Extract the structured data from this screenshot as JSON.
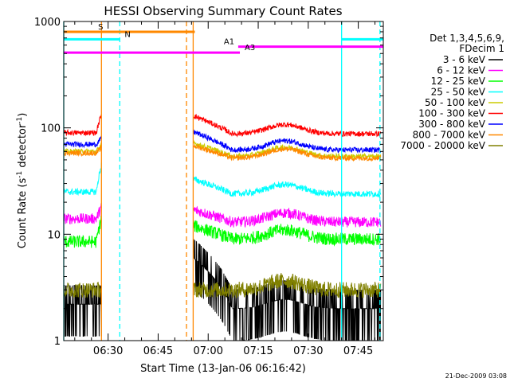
{
  "chart_data": {
    "type": "line",
    "title": "HESSI Observing Summary Count Rates",
    "xlabel": "Start Time (13-Jan-06 06:16:42)",
    "ylabel_main": "Count Rate (s",
    "ylabel_sup1": "-1",
    "ylabel_mid": " detector",
    "ylabel_sup2": "-1",
    "ylabel_end": ")",
    "y_scale": "log",
    "ylim": [
      1,
      1000
    ],
    "xlim": [
      "06:16:42",
      "07:52:30"
    ],
    "x_ticks": [
      "06:30",
      "06:45",
      "07:00",
      "07:15",
      "07:30",
      "07:45"
    ],
    "y_ticks": [
      "1",
      "10",
      "100",
      "1000"
    ],
    "data_gap": [
      "06:28:00",
      "06:55:30"
    ],
    "legend_header": [
      "Det 1,3,4,5,6,9,",
      "FDecim 1"
    ],
    "legend_position": "right",
    "series": [
      {
        "name": "3 - 6 keV",
        "color": "#000000",
        "pre": 2.2,
        "post_start": 6,
        "post": 2.0,
        "noise": 0.35,
        "spike": 0
      },
      {
        "name": "6 - 12 keV",
        "color": "#ff00ff",
        "pre": 14,
        "post_start": 17,
        "post": 13,
        "noise": 0.1,
        "spike": 18
      },
      {
        "name": "12 - 25 keV",
        "color": "#00ff00",
        "pre": 8.5,
        "post_start": 12,
        "post": 9.0,
        "noise": 0.12,
        "spike": 14
      },
      {
        "name": "25 - 50 keV",
        "color": "#00ffff",
        "pre": 25,
        "post_start": 33,
        "post": 24,
        "noise": 0.06,
        "spike": 45
      },
      {
        "name": "50 - 100 keV",
        "color": "#cccc00",
        "pre": 60,
        "post_start": 72,
        "post": 54,
        "noise": 0.05,
        "spike": 70
      },
      {
        "name": "100 - 300 keV",
        "color": "#ff0000",
        "pre": 90,
        "post_start": 130,
        "post": 88,
        "noise": 0.05,
        "spike": 135
      },
      {
        "name": "300 - 800 keV",
        "color": "#0000ff",
        "pre": 70,
        "post_start": 92,
        "post": 62,
        "noise": 0.05,
        "spike": 80
      },
      {
        "name": "800 - 7000 keV",
        "color": "#ff8800",
        "pre": 58,
        "post_start": 68,
        "post": 52,
        "noise": 0.05,
        "spike": 65
      },
      {
        "name": "7000 - 20000 keV",
        "color": "#808000",
        "pre": 3.0,
        "post_start": 3.0,
        "post": 3.0,
        "noise": 0.15,
        "spike": 0
      }
    ],
    "flag_bars": [
      {
        "label": "S",
        "color": "#ff8800",
        "start": "06:16:42",
        "end": "06:56:00",
        "level": 800
      },
      {
        "label": "N",
        "color": "#00ffff",
        "start": "06:16:42",
        "end": "06:33:30",
        "level": 680
      },
      {
        "label": "A1",
        "color": "#ff00ff",
        "start": "07:09:00",
        "end": "07:52:30",
        "level": 580
      },
      {
        "label": "A3",
        "color": "#ff00ff",
        "start": "06:16:42",
        "end": "07:09:30",
        "level": 510
      },
      {
        "label": "",
        "color": "#00ffff",
        "start": "07:40:00",
        "end": "07:52:30",
        "level": 680
      }
    ],
    "vlines": [
      {
        "time": "06:16:42",
        "color": "#00ffff",
        "style": "solid"
      },
      {
        "time": "06:28:00",
        "color": "#ff8800",
        "style": "solid"
      },
      {
        "time": "06:33:30",
        "color": "#00ffff",
        "style": "dashed"
      },
      {
        "time": "06:53:30",
        "color": "#ff8800",
        "style": "dashed"
      },
      {
        "time": "06:55:30",
        "color": "#ff8800",
        "style": "solid"
      },
      {
        "time": "07:40:00",
        "color": "#00ffff",
        "style": "solid"
      },
      {
        "time": "07:51:30",
        "color": "#00ffff",
        "style": "dashed"
      }
    ]
  },
  "footer": {
    "date": "21-Dec-2009 03:08"
  }
}
